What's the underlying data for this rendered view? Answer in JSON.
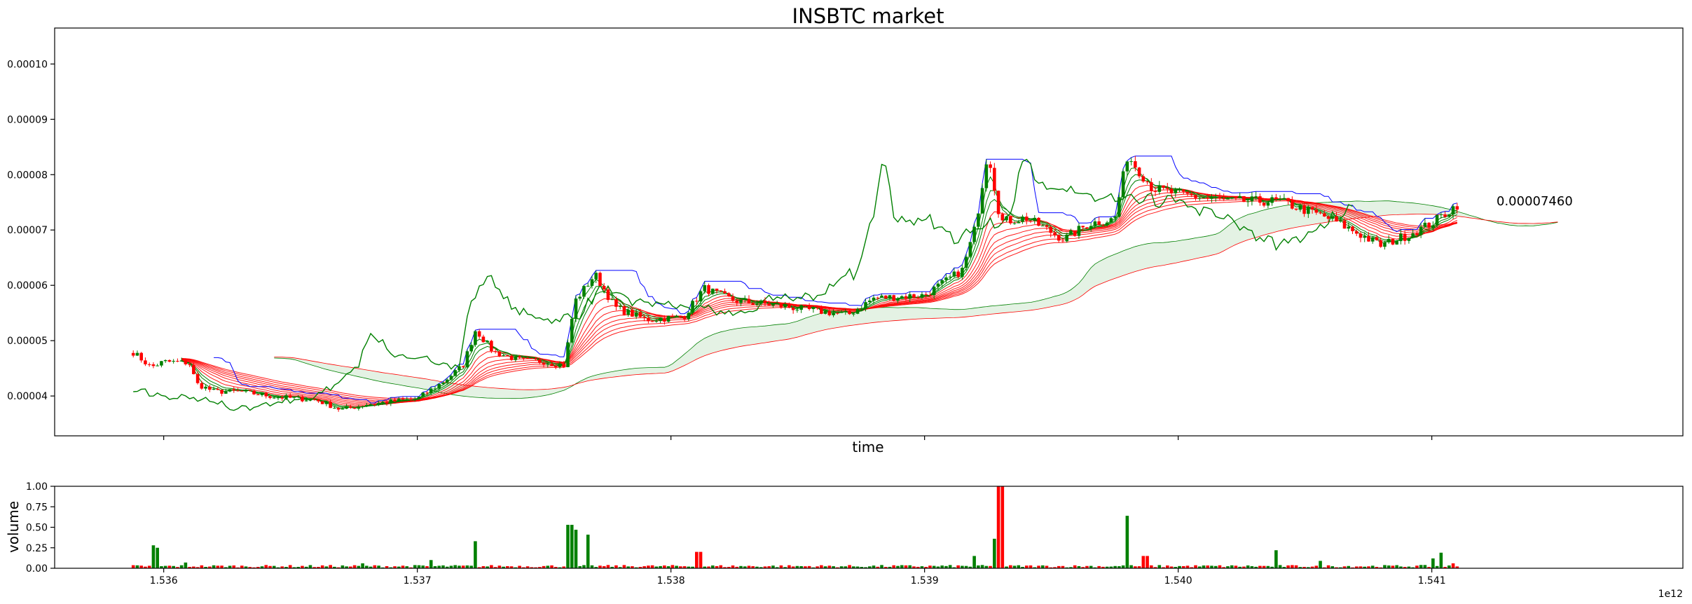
{
  "chart_data": [
    {
      "type": "candlestick",
      "title": "INSBTC market",
      "xlabel": "time",
      "ylabel": "",
      "xlim": [
        1535570000000,
        1541990000000
      ],
      "ylim": [
        3.28e-05,
        0.0001065
      ],
      "x_ticks": [
        1536000000000,
        1537000000000,
        1538000000000,
        1539000000000,
        1540000000000,
        1541000000000
      ],
      "y_ticks": [
        4e-05,
        5e-05,
        6e-05,
        7e-05,
        8e-05,
        9e-05,
        0.0001
      ],
      "y_tick_labels": [
        "0.00004",
        "0.00005",
        "0.00006",
        "0.00007",
        "0.00008",
        "0.00009",
        "0.00010"
      ],
      "last_price_annotation": "0.00007460",
      "up_color": "#008000",
      "down_color": "#ff0000",
      "close_anchors": [
        [
          1535880000000,
          4.79e-05
        ],
        [
          1535950000000,
          4.52e-05
        ],
        [
          1536000000000,
          4.62e-05
        ],
        [
          1536100000000,
          4.6e-05
        ],
        [
          1536130000000,
          4.22e-05
        ],
        [
          1536200000000,
          4.08e-05
        ],
        [
          1536300000000,
          4.08e-05
        ],
        [
          1536450000000,
          3.98e-05
        ],
        [
          1536600000000,
          3.93e-05
        ],
        [
          1536700000000,
          3.75e-05
        ],
        [
          1536800000000,
          3.85e-05
        ],
        [
          1537000000000,
          3.95e-05
        ],
        [
          1537100000000,
          4.25e-05
        ],
        [
          1537180000000,
          4.55e-05
        ],
        [
          1537230000000,
          5.2e-05
        ],
        [
          1537300000000,
          4.8e-05
        ],
        [
          1537400000000,
          4.65e-05
        ],
        [
          1537500000000,
          4.62e-05
        ],
        [
          1537580000000,
          4.55e-05
        ],
        [
          1537620000000,
          5.7e-05
        ],
        [
          1537700000000,
          6.2e-05
        ],
        [
          1537780000000,
          5.6e-05
        ],
        [
          1537900000000,
          5.38e-05
        ],
        [
          1538050000000,
          5.43e-05
        ],
        [
          1538130000000,
          5.95e-05
        ],
        [
          1538250000000,
          5.72e-05
        ],
        [
          1538400000000,
          5.65e-05
        ],
        [
          1538550000000,
          5.55e-05
        ],
        [
          1538700000000,
          5.47e-05
        ],
        [
          1538800000000,
          5.77e-05
        ],
        [
          1539000000000,
          5.82e-05
        ],
        [
          1539150000000,
          6.28e-05
        ],
        [
          1539200000000,
          7.05e-05
        ],
        [
          1539250000000,
          8.45e-05
        ],
        [
          1539300000000,
          7.15e-05
        ],
        [
          1539400000000,
          7.22e-05
        ],
        [
          1539550000000,
          6.83e-05
        ],
        [
          1539650000000,
          7.12e-05
        ],
        [
          1539750000000,
          7.2e-05
        ],
        [
          1539800000000,
          8.35e-05
        ],
        [
          1539900000000,
          7.75e-05
        ],
        [
          1540000000000,
          7.65e-05
        ],
        [
          1540200000000,
          7.52e-05
        ],
        [
          1540400000000,
          7.52e-05
        ],
        [
          1540600000000,
          7.2e-05
        ],
        [
          1540800000000,
          6.72e-05
        ],
        [
          1540900000000,
          6.9e-05
        ],
        [
          1541000000000,
          7.12e-05
        ],
        [
          1541100000000,
          7.46e-05
        ]
      ],
      "volume_ylim": [
        0.0,
        1.0
      ],
      "volume_y_ticks": [
        0.0,
        0.25,
        0.5,
        0.75,
        1.0
      ],
      "volume_y_tick_labels": [
        "0.00",
        "0.25",
        "0.50",
        "0.75",
        "1.00"
      ],
      "volume_ylabel": "volume",
      "x_offset_label": "1e12",
      "volume_peaks": [
        [
          1535960000000,
          0.28,
          "up"
        ],
        [
          1535980000000,
          0.25,
          "up"
        ],
        [
          1536080000000,
          0.07,
          "up"
        ],
        [
          1536780000000,
          0.06,
          "up"
        ],
        [
          1537050000000,
          0.1,
          "up"
        ],
        [
          1537230000000,
          0.33,
          "up"
        ],
        [
          1537600000000,
          0.53,
          "up"
        ],
        [
          1537620000000,
          0.47,
          "up"
        ],
        [
          1537670000000,
          0.41,
          "up"
        ],
        [
          1538110000000,
          0.2,
          "down"
        ],
        [
          1539190000000,
          0.15,
          "up"
        ],
        [
          1539280000000,
          0.36,
          "up"
        ],
        [
          1539300000000,
          1.0,
          "down"
        ],
        [
          1539800000000,
          0.64,
          "up"
        ],
        [
          1539870000000,
          0.15,
          "down"
        ],
        [
          1540390000000,
          0.22,
          "up"
        ],
        [
          1540560000000,
          0.09,
          "up"
        ],
        [
          1541000000000,
          0.12,
          "up"
        ],
        [
          1541040000000,
          0.19,
          "up"
        ],
        [
          1541080000000,
          0.06,
          "down"
        ]
      ]
    }
  ]
}
